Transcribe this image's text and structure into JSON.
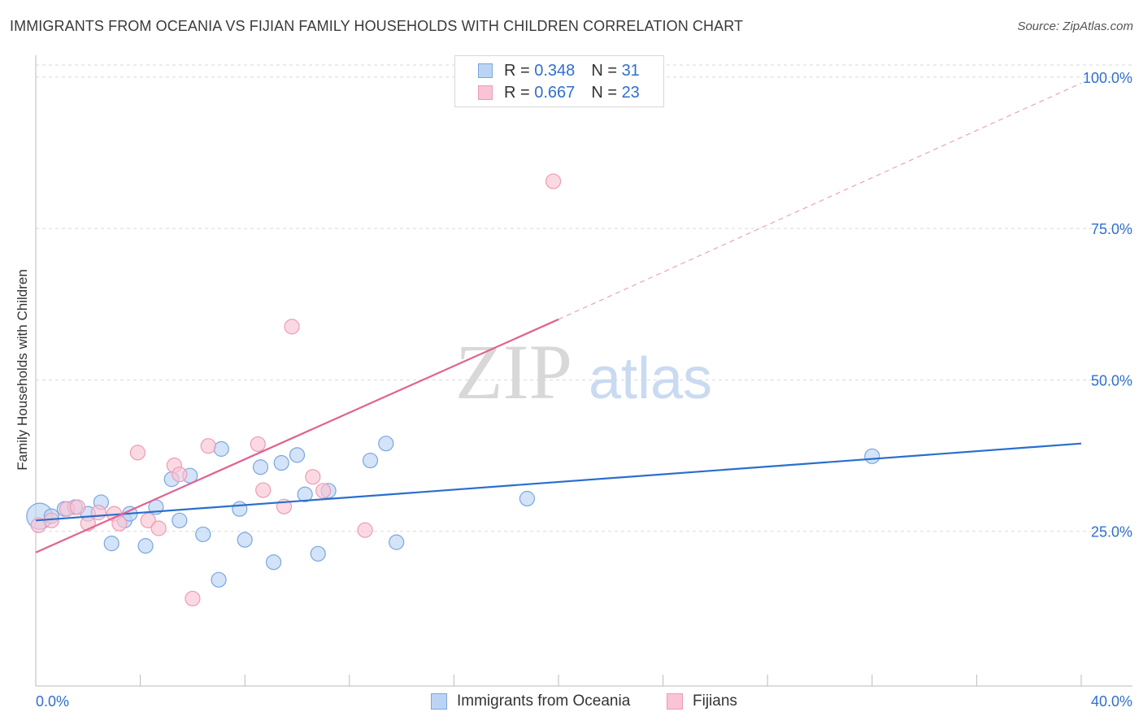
{
  "title": "IMMIGRANTS FROM OCEANIA VS FIJIAN FAMILY HOUSEHOLDS WITH CHILDREN CORRELATION CHART",
  "source": "Source: ZipAtlas.com",
  "watermark": {
    "zip": "ZIP",
    "atlas": "atlas"
  },
  "legend": {
    "r_label": "R =",
    "n_label": "N =",
    "rows": [
      {
        "r": "0.348",
        "n": "31"
      },
      {
        "r": "0.667",
        "n": "23"
      }
    ]
  },
  "colors": {
    "oceania_fill": "#bcd4f4",
    "oceania_stroke": "#7aa6e0",
    "oceania_line": "#2a6fcc",
    "fijian_fill": "#f9c4d4",
    "fijian_stroke": "#ee9bb5",
    "fijian_line": "#e0638f",
    "grid": "#d9d9d9",
    "tick_label": "#2f6fd0"
  },
  "chart_data": {
    "type": "scatter",
    "xlabel": "",
    "ylabel": "Family Households with Children",
    "xlim": [
      0,
      40
    ],
    "ylim": [
      0,
      102
    ],
    "x_tick_labels": {
      "min": "0.0%",
      "max": "40.0%"
    },
    "y_ticks": [
      {
        "value": 25,
        "label": "25.0%"
      },
      {
        "value": 50,
        "label": "50.0%"
      },
      {
        "value": 75,
        "label": "75.0%"
      },
      {
        "value": 100,
        "label": "100.0%"
      }
    ],
    "series": [
      {
        "name": "Immigrants from Oceania",
        "points": [
          [
            0.15,
            27.5
          ],
          [
            0.6,
            27.5
          ],
          [
            1.1,
            28.7
          ],
          [
            1.5,
            29.0
          ],
          [
            2.0,
            27.9
          ],
          [
            2.5,
            29.8
          ],
          [
            2.9,
            23.0
          ],
          [
            3.4,
            26.8
          ],
          [
            3.6,
            27.9
          ],
          [
            4.2,
            22.6
          ],
          [
            4.6,
            29.0
          ],
          [
            5.2,
            33.6
          ],
          [
            5.5,
            26.8
          ],
          [
            5.9,
            34.2
          ],
          [
            6.4,
            24.5
          ],
          [
            7.0,
            17.0
          ],
          [
            7.1,
            38.6
          ],
          [
            7.8,
            28.7
          ],
          [
            8.0,
            23.6
          ],
          [
            8.6,
            35.6
          ],
          [
            9.1,
            19.9
          ],
          [
            9.4,
            36.3
          ],
          [
            10.0,
            37.6
          ],
          [
            10.3,
            31.1
          ],
          [
            10.8,
            21.3
          ],
          [
            11.2,
            31.7
          ],
          [
            12.8,
            36.7
          ],
          [
            13.4,
            39.5
          ],
          [
            13.8,
            23.2
          ],
          [
            18.8,
            30.4
          ],
          [
            32.0,
            37.4
          ]
        ],
        "trend": {
          "x0": 0,
          "y0": 26.8,
          "x1": 40,
          "y1": 39.5
        }
      },
      {
        "name": "Fijians",
        "points": [
          [
            0.1,
            26.0
          ],
          [
            0.6,
            26.8
          ],
          [
            1.2,
            28.7
          ],
          [
            1.6,
            29.0
          ],
          [
            2.0,
            26.3
          ],
          [
            2.4,
            28.1
          ],
          [
            3.0,
            27.9
          ],
          [
            3.2,
            26.3
          ],
          [
            3.9,
            38.0
          ],
          [
            4.3,
            26.8
          ],
          [
            4.7,
            25.5
          ],
          [
            5.3,
            35.9
          ],
          [
            5.5,
            34.4
          ],
          [
            6.0,
            13.9
          ],
          [
            6.6,
            39.1
          ],
          [
            8.5,
            39.4
          ],
          [
            8.7,
            31.8
          ],
          [
            9.5,
            29.1
          ],
          [
            9.8,
            58.8
          ],
          [
            10.6,
            34.0
          ],
          [
            11.0,
            31.7
          ],
          [
            12.6,
            25.2
          ],
          [
            19.8,
            82.8
          ]
        ],
        "trend": {
          "x0": 0,
          "y0": 21.5,
          "x1": 20.0,
          "y1": 60.0
        },
        "trend_dashed": {
          "x0": 20.0,
          "y0": 60.0,
          "x1": 40,
          "y1": 99
        }
      }
    ]
  }
}
